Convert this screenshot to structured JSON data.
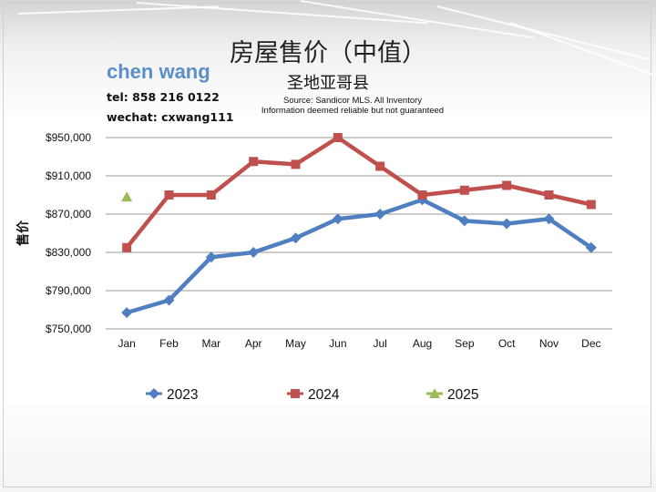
{
  "slide": {
    "title": "房屋售价（中值）",
    "subtitle": "圣地亚哥县",
    "agent": {
      "name": "chen wang",
      "tel": "tel: 858 216 0122",
      "wechat": "wechat: cxwang111"
    },
    "source_lines": [
      "Source: Sandicor MLS. All Inventory",
      "Information deemed reliable but not guaranteed"
    ]
  },
  "chart_data": {
    "type": "line",
    "ylabel": "售价",
    "categories": [
      "Jan",
      "Feb",
      "Mar",
      "Apr",
      "May",
      "Jun",
      "Jul",
      "Aug",
      "Sep",
      "Oct",
      "Nov",
      "Dec"
    ],
    "ylim": [
      750000,
      950000
    ],
    "yticks": [
      750000,
      790000,
      830000,
      870000,
      910000,
      950000
    ],
    "ytick_labels": [
      "$750,000",
      "$790,000",
      "$830,000",
      "$870,000",
      "$910,000",
      "$950,000"
    ],
    "grid": true,
    "legend_position": "bottom",
    "series": [
      {
        "name": "2023",
        "color": "#4f7fc1",
        "marker": "diamond",
        "values": [
          767000,
          780000,
          825000,
          830000,
          845000,
          865000,
          870000,
          885000,
          863000,
          860000,
          865000,
          835000
        ]
      },
      {
        "name": "2024",
        "color": "#c0504d",
        "marker": "square",
        "values": [
          835000,
          890000,
          890000,
          925000,
          922000,
          950000,
          920000,
          890000,
          895000,
          900000,
          890000,
          880000
        ]
      },
      {
        "name": "2025",
        "color": "#9bbb59",
        "marker": "triangle",
        "values": [
          888000,
          null,
          null,
          null,
          null,
          null,
          null,
          null,
          null,
          null,
          null,
          null
        ]
      }
    ]
  }
}
